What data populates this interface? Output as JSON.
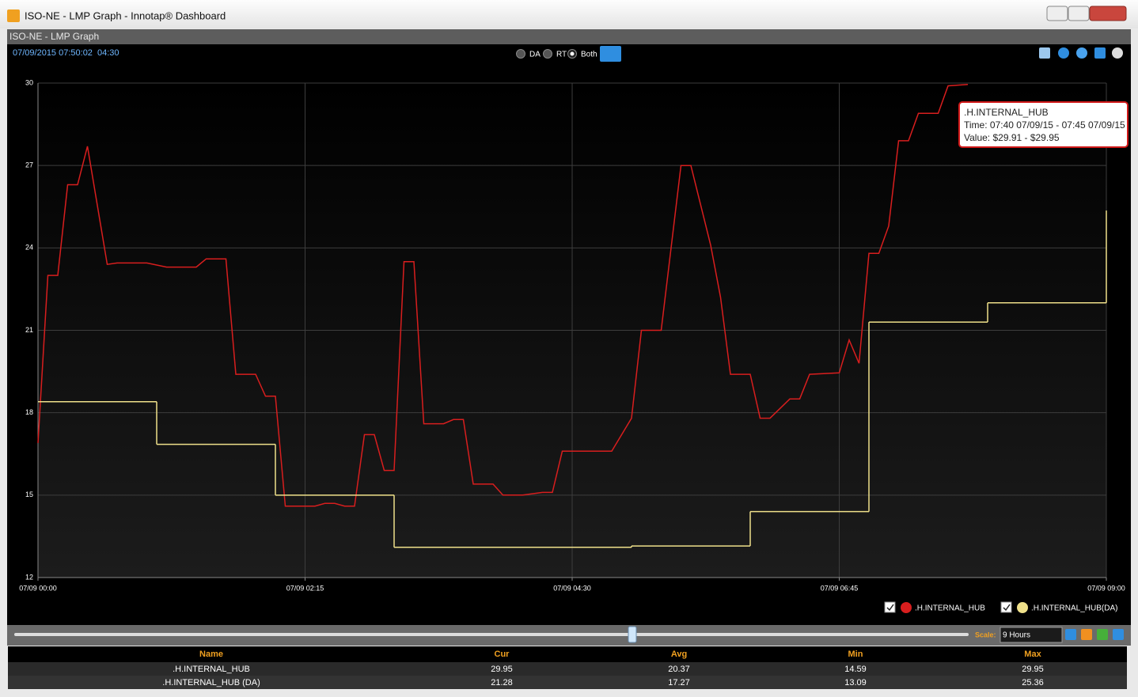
{
  "window": {
    "title": "ISO-NE - LMP Graph - Innotap® Dashboard"
  },
  "panel": {
    "title": "ISO-NE - LMP Graph"
  },
  "toolbar": {
    "timestamp": "07/09/2015 07:50:02",
    "elapsed": "04:30",
    "modes": [
      "DA",
      "RT",
      "Both"
    ]
  },
  "chart_data": {
    "type": "line",
    "grid": true,
    "xlim": [
      0,
      540
    ],
    "xticks": [
      {
        "value": 0,
        "label": "07/09 00:00"
      },
      {
        "value": 135,
        "label": "07/09 02:15"
      },
      {
        "value": 270,
        "label": "07/09 04:30"
      },
      {
        "value": 405,
        "label": "07/09 06:45"
      },
      {
        "value": 540,
        "label": "07/09 09:00"
      }
    ],
    "ylim": [
      12,
      30
    ],
    "yticks": [
      12,
      15,
      18,
      21,
      24,
      27,
      30
    ],
    "series": [
      {
        "name": ".H.INTERNAL_HUB",
        "color": "#d81e1e",
        "x": [
          0,
          5,
          10,
          15,
          20,
          25,
          35,
          40,
          55,
          65,
          80,
          85,
          95,
          100,
          110,
          115,
          120,
          125,
          140,
          145,
          150,
          155,
          160,
          165,
          170,
          175,
          180,
          185,
          190,
          195,
          205,
          210,
          215,
          220,
          230,
          235,
          245,
          255,
          260,
          265,
          290,
          300,
          305,
          315,
          325,
          330,
          340,
          345,
          350,
          360,
          365,
          370,
          380,
          385,
          390,
          405,
          410,
          415,
          420,
          425,
          430,
          435,
          440,
          445,
          455,
          460,
          470
        ],
        "values": [
          16.9,
          23.0,
          23.0,
          26.3,
          26.3,
          27.7,
          23.4,
          23.45,
          23.45,
          23.3,
          23.3,
          23.6,
          23.6,
          19.4,
          19.4,
          18.6,
          18.6,
          14.6,
          14.6,
          14.7,
          14.7,
          14.6,
          14.6,
          17.2,
          17.2,
          15.9,
          15.9,
          23.5,
          23.5,
          17.6,
          17.6,
          17.75,
          17.75,
          15.4,
          15.4,
          15.0,
          15.0,
          15.1,
          15.1,
          16.6,
          16.6,
          17.8,
          21.0,
          21.0,
          27.0,
          27.0,
          24.1,
          22.2,
          19.4,
          19.4,
          17.8,
          17.8,
          18.5,
          18.5,
          19.4,
          19.45,
          20.65,
          19.8,
          23.8,
          23.8,
          24.8,
          27.9,
          27.9,
          28.9,
          28.9,
          29.9,
          29.95
        ]
      },
      {
        "name": ".H.INTERNAL_HUB(DA)",
        "color": "#efe08a",
        "step": "post",
        "x": [
          0,
          60,
          120,
          180,
          300,
          360,
          420,
          480,
          540
        ],
        "values": [
          18.4,
          16.85,
          15.0,
          13.1,
          13.15,
          14.4,
          21.3,
          22.0,
          25.36
        ]
      }
    ]
  },
  "tooltip": {
    "title": ".H.INTERNAL_HUB",
    "time": "Time: 07:40 07/09/15 - 07:45 07/09/15",
    "value": "Value: $29.91 - $29.95"
  },
  "scale": {
    "label": "Scale:",
    "value": "9 Hours"
  },
  "table": {
    "columns": [
      "Name",
      "Cur",
      "Avg",
      "Min",
      "Max"
    ],
    "rows": [
      [
        ".H.INTERNAL_HUB",
        29.95,
        20.37,
        14.59,
        29.95
      ],
      [
        ".H.INTERNAL_HUB (DA)",
        21.28,
        17.27,
        13.09,
        25.36
      ]
    ]
  }
}
